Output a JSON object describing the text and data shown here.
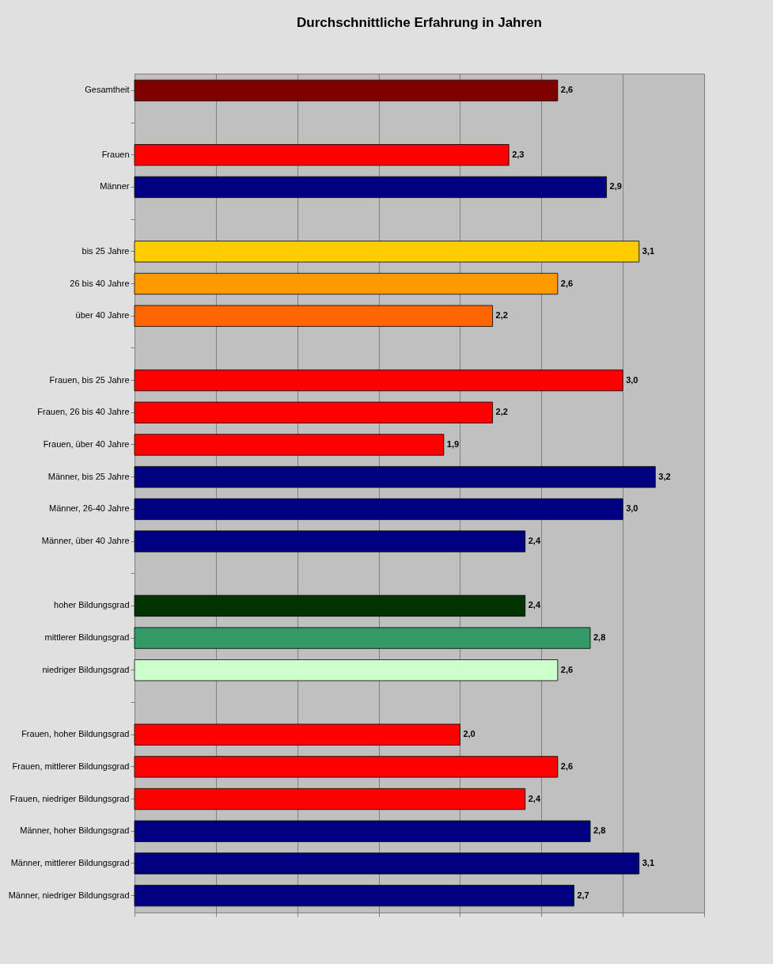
{
  "chart_data": {
    "type": "bar",
    "orientation": "horizontal",
    "title": "Durchschnittliche Erfahrung in Jahren",
    "categories": [
      "Gesamtheit",
      null,
      "Frauen",
      "Männer",
      null,
      "bis 25 Jahre",
      "26 bis 40 Jahre",
      "über 40 Jahre",
      null,
      "Frauen, bis 25 Jahre",
      "Frauen, 26 bis 40 Jahre",
      "Frauen, über 40 Jahre",
      "Männer, bis 25 Jahre",
      "Männer, 26-40 Jahre",
      "Männer, über 40 Jahre",
      null,
      "hoher Bildungsgrad",
      "mittlerer Bildungsgrad",
      "niedriger Bildungsgrad",
      null,
      "Frauen, hoher Bildungsgrad",
      "Frauen, mittlerer Bildungsgrad",
      "Frauen, niedriger Bildungsgrad",
      "Männer, hoher Bildungsgrad",
      "Männer, mittlerer Bildungsgrad",
      "Männer, niedriger Bildungsgrad"
    ],
    "values": [
      2.6,
      null,
      2.3,
      2.9,
      null,
      3.1,
      2.6,
      2.2,
      null,
      3.0,
      2.2,
      1.9,
      3.2,
      3.0,
      2.4,
      null,
      2.4,
      2.8,
      2.6,
      null,
      2.0,
      2.6,
      2.4,
      2.8,
      3.1,
      2.7
    ],
    "value_labels": [
      "2,6",
      null,
      "2,3",
      "2,9",
      null,
      "3,1",
      "2,6",
      "2,2",
      null,
      "3,0",
      "2,2",
      "1,9",
      "3,2",
      "3,0",
      "2,4",
      null,
      "2,4",
      "2,8",
      "2,6",
      null,
      "2,0",
      "2,6",
      "2,4",
      "2,8",
      "3,1",
      "2,7"
    ],
    "colors": [
      "#800000",
      null,
      "#ff0000",
      "#000080",
      null,
      "#ffcc00",
      "#ff9900",
      "#ff6600",
      null,
      "#ff0000",
      "#ff0000",
      "#ff0000",
      "#000080",
      "#000080",
      "#000080",
      null,
      "#003300",
      "#339966",
      "#ccffcc",
      null,
      "#ff0000",
      "#ff0000",
      "#ff0000",
      "#000080",
      "#000080",
      "#000080"
    ],
    "xlim": [
      0,
      3.5
    ],
    "xticks": [
      {
        "value": 0,
        "label": null
      },
      {
        "value": 0.5,
        "label": null
      },
      {
        "value": 1,
        "label": null
      },
      {
        "value": 1.5,
        "label": null
      },
      {
        "value": 2,
        "label": null
      },
      {
        "value": 2.5,
        "label": null
      },
      {
        "value": 3,
        "label": null
      },
      {
        "value": 3.5,
        "label": null
      }
    ],
    "grid": "x",
    "tick_labels": "y",
    "legend": false
  }
}
